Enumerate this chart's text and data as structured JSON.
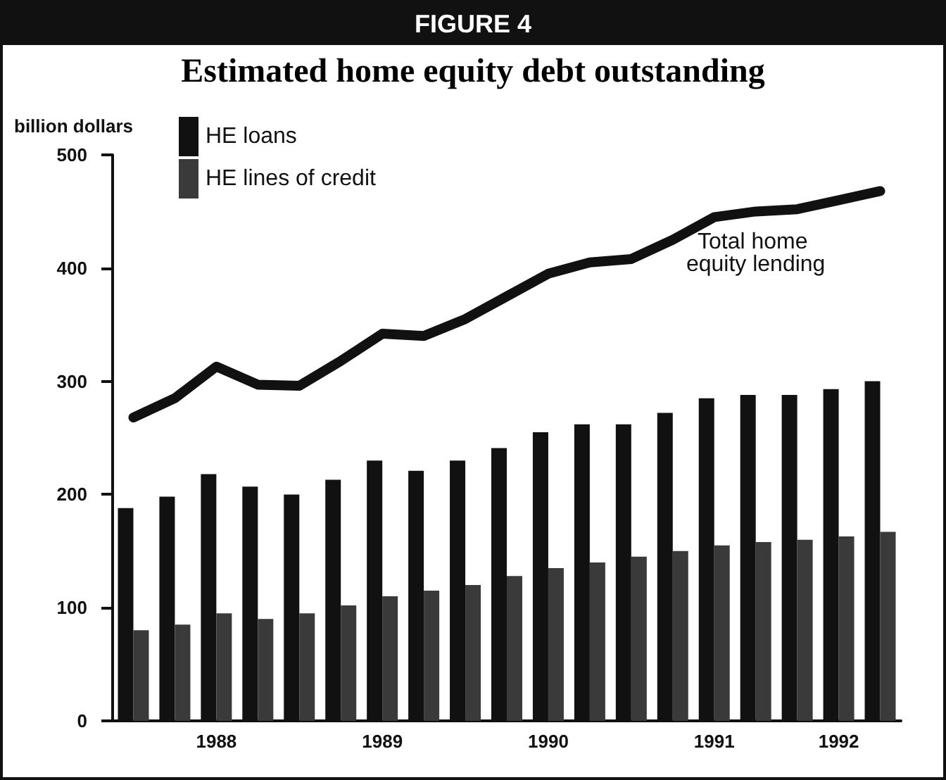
{
  "chart_data": {
    "type": "bar",
    "title": "FIGURE 4",
    "subtitle": "Estimated home equity debt outstanding",
    "ylabel": "billion dollars",
    "categories": [
      null,
      null,
      "1988",
      null,
      null,
      null,
      "1989",
      null,
      null,
      null,
      "1990",
      null,
      null,
      null,
      "1991",
      null,
      null,
      "1992",
      null
    ],
    "series": [
      {
        "name": "HE loans",
        "color": "#111111",
        "values": [
          188,
          198,
          218,
          207,
          200,
          213,
          230,
          221,
          230,
          241,
          255,
          262,
          262,
          272,
          285,
          288,
          288,
          293,
          300
        ]
      },
      {
        "name": "HE lines of credit",
        "color": "#3a3a3a",
        "values": [
          80,
          85,
          95,
          90,
          95,
          102,
          110,
          115,
          120,
          128,
          135,
          140,
          145,
          150,
          155,
          158,
          160,
          163,
          167
        ]
      },
      {
        "name": "Total home equity lending",
        "type": "line",
        "color": "#111111",
        "values": [
          268,
          285,
          313,
          297,
          296,
          318,
          342,
          340,
          355,
          375,
          395,
          405,
          408,
          425,
          445,
          450,
          452,
          460,
          468
        ]
      }
    ],
    "ylim": [
      0,
      500
    ],
    "yticks": [
      0,
      100,
      200,
      300,
      400,
      500
    ],
    "grid": false,
    "legend": "top left",
    "marker": "none",
    "line_style": "solid"
  }
}
